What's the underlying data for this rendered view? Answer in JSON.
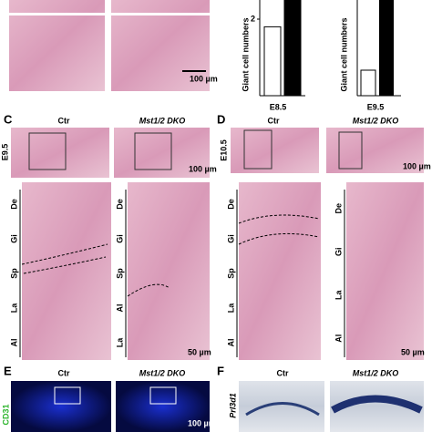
{
  "panel_a": {
    "scale_bar": "100 µm"
  },
  "panel_b": {
    "chart_1": {
      "type": "bar",
      "y_label": "Giant cell numbers",
      "x_label": "E8.5",
      "values": [
        1.8,
        2.5
      ],
      "colors": [
        "#ffffff",
        "#000000"
      ],
      "ylim": [
        0,
        2.5
      ],
      "yticks": [
        2
      ]
    },
    "chart_2": {
      "y_label": "Giant cell numbers",
      "x_label": "E9.5"
    }
  },
  "panel_c": {
    "letter": "C",
    "ctr": "Ctr",
    "dko": "Mst1/2 DKO",
    "stage": "E9.5",
    "scale_bar_top": "100 µm",
    "scale_bar_bottom": "50 µm",
    "layers_left": [
      "De",
      "Gi",
      "Sp",
      "La",
      "Al"
    ],
    "layers_right": [
      "De",
      "Gi",
      "Sp",
      "Al",
      "La"
    ]
  },
  "panel_d": {
    "letter": "D",
    "ctr": "Ctr",
    "dko": "Mst1/2 DKO",
    "stage": "E10.5",
    "scale_bar_top": "100 µm",
    "scale_bar_bottom": "50 µm",
    "layers_left": [
      "De",
      "Gi",
      "Sp",
      "La",
      "Al"
    ],
    "layers_right": [
      "De",
      "Gi",
      "La",
      "Al"
    ]
  },
  "panel_e": {
    "letter": "E",
    "ctr": "Ctr",
    "dko": "Mst1/2 DKO",
    "marker": "CD31",
    "scale_bar": "100 µm"
  },
  "panel_f": {
    "letter": "F",
    "ctr": "Ctr",
    "dko": "Mst1/2 DKO",
    "marker": "Prl3d1"
  }
}
